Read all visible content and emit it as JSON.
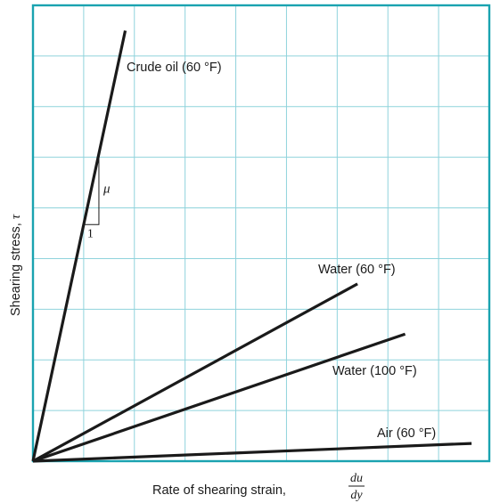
{
  "chart_data": {
    "type": "line",
    "title": "",
    "xlabel": "Rate of shearing strain,",
    "xlabel_fraction": {
      "numerator": "du",
      "denominator": "dy"
    },
    "ylabel_text": "Shearing stress,",
    "ylabel_symbol": "τ",
    "grid": true,
    "colors": {
      "grid": "#8fd3dc",
      "frame": "#1aa3b0",
      "line": "#1a1a1a"
    },
    "xlim": [
      0,
      9
    ],
    "ylim": [
      0,
      9
    ],
    "series": [
      {
        "name": "Crude oil (60 °F)",
        "x": [
          0,
          1.82
        ],
        "y": [
          0,
          8.5
        ]
      },
      {
        "name": "Water (60 °F)",
        "x": [
          0,
          6.4
        ],
        "y": [
          0,
          3.5
        ]
      },
      {
        "name": "Water (100 °F)",
        "x": [
          0,
          7.34
        ],
        "y": [
          0,
          2.51
        ]
      },
      {
        "name": "Air (60 °F)",
        "x": [
          0,
          8.65
        ],
        "y": [
          0,
          0.35
        ]
      }
    ],
    "annotations": {
      "slope_label": "μ",
      "run_label": "1"
    }
  }
}
